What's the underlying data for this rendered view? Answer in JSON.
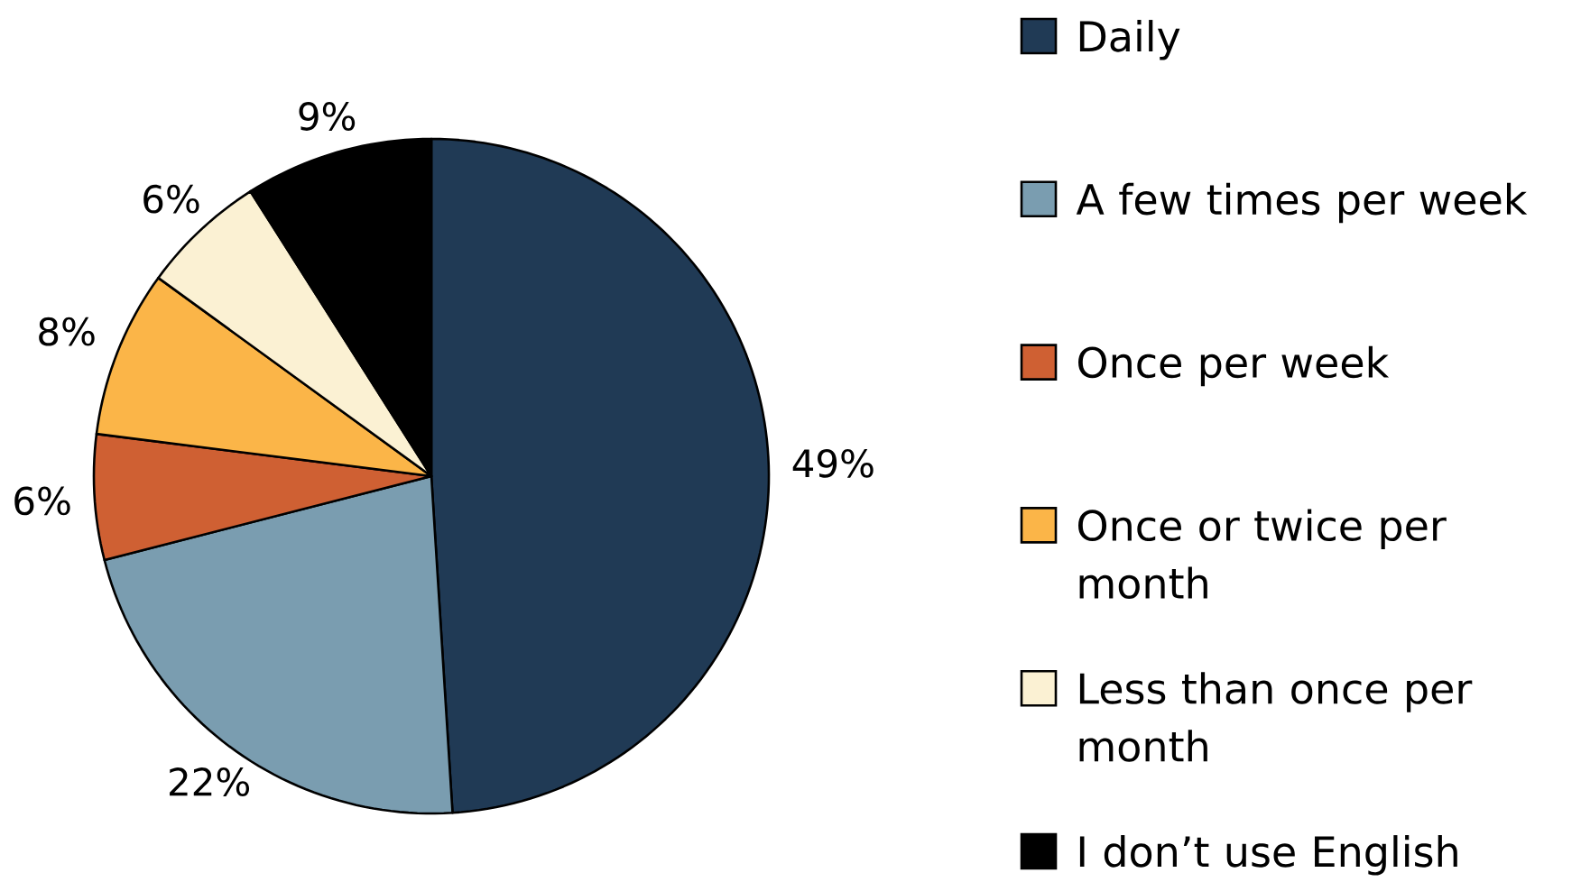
{
  "chart_data": {
    "type": "pie",
    "categories": [
      "Daily",
      "A few times per week",
      "Once per week",
      "Once or twice per month",
      "Less than once per month",
      "I don’t use English"
    ],
    "values": [
      49,
      22,
      6,
      8,
      6,
      9
    ],
    "colors": [
      "#203a55",
      "#7a9db0",
      "#cf6033",
      "#fbb548",
      "#fbf1d3",
      "#000000"
    ],
    "value_labels": [
      "49%",
      "22%",
      "6%",
      "8%",
      "6%",
      "9%"
    ],
    "legend": "right"
  }
}
